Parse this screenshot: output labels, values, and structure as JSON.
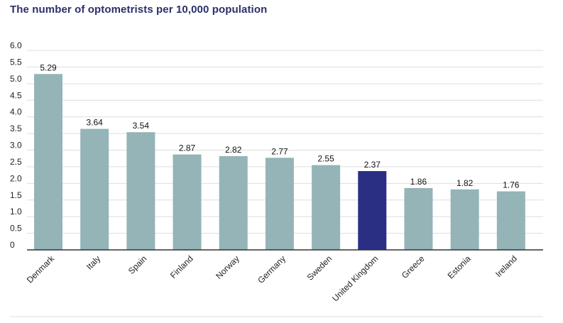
{
  "chart_data": {
    "type": "bar",
    "title": "The number of optometrists per 10,000 population",
    "xlabel": "",
    "ylabel": "",
    "ylim": [
      0,
      6.0
    ],
    "yticks": [
      "0",
      "0.5",
      "1.0",
      "1.5",
      "2.0",
      "2.5",
      "3.0",
      "3.5",
      "4.0",
      "4.5",
      "5.0",
      "5.5",
      "6.0"
    ],
    "categories": [
      "Denmark",
      "Italy",
      "Spain",
      "Finland",
      "Norway",
      "Germany",
      "Sweden",
      "United Kingdom",
      "Greece",
      "Estonia",
      "Ireland"
    ],
    "values": [
      5.29,
      3.64,
      3.54,
      2.87,
      2.82,
      2.77,
      2.55,
      2.37,
      1.86,
      1.82,
      1.76
    ],
    "value_labels": [
      "5.29",
      "3.64",
      "3.54",
      "2.87",
      "2.82",
      "2.77",
      "2.55",
      "2.37",
      "1.86",
      "1.82",
      "1.76"
    ],
    "highlight": "United Kingdom",
    "colors": {
      "bar": "#94b4b7",
      "highlight": "#2b2f84",
      "grid": "#dddddd",
      "axis": "#333333"
    }
  }
}
